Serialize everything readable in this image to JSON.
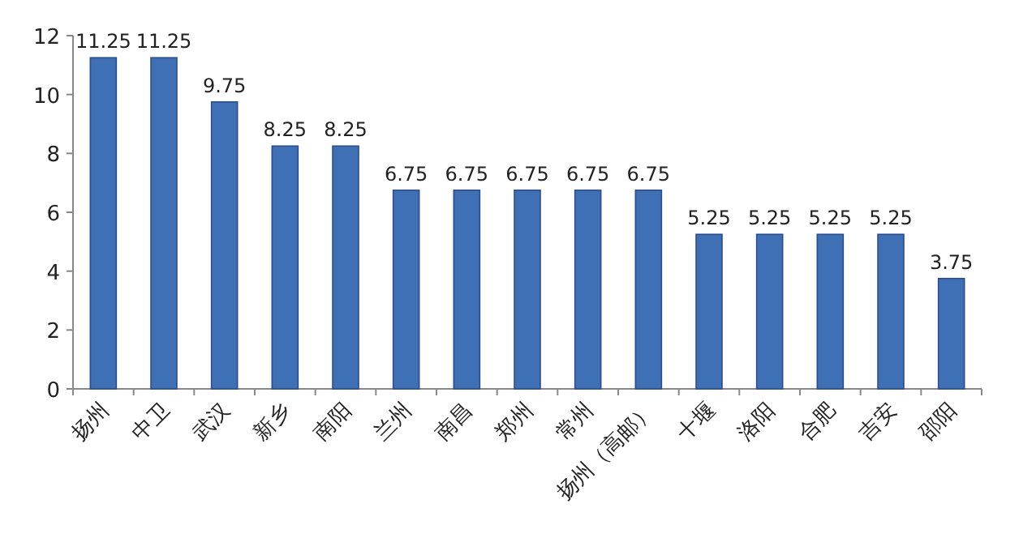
{
  "chart_data": {
    "type": "bar",
    "categories": [
      "扬州",
      "中卫",
      "武汉",
      "新乡",
      "南阳",
      "兰州",
      "南昌",
      "郑州",
      "常州",
      "扬州（高邮）",
      "十堰",
      "洛阳",
      "合肥",
      "吉安",
      "邵阳"
    ],
    "values": [
      11.25,
      11.25,
      9.75,
      8.25,
      8.25,
      6.75,
      6.75,
      6.75,
      6.75,
      6.75,
      5.25,
      5.25,
      5.25,
      5.25,
      3.75
    ],
    "color": "#3f6fb5",
    "ylim": [
      0,
      12
    ],
    "yticks": [
      0,
      2,
      4,
      6,
      8,
      10,
      12
    ],
    "data_labels": true,
    "grid": false
  }
}
